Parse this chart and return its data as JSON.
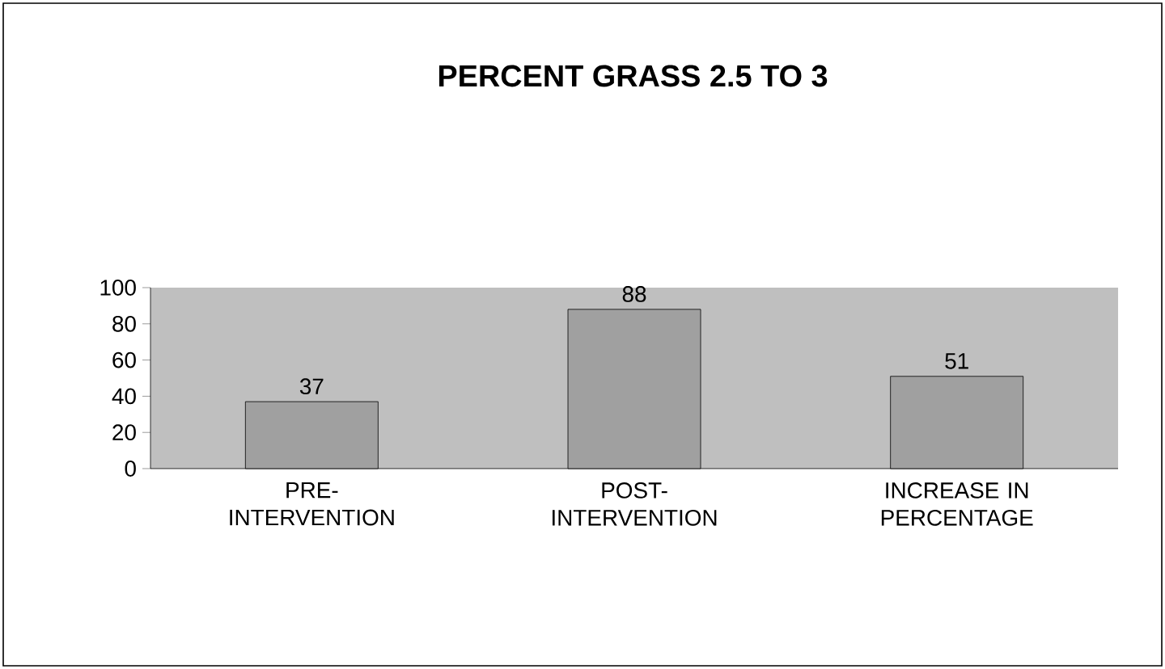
{
  "chart_data": {
    "type": "bar",
    "title": "PERCENT GRASS 2.5 TO 3",
    "categories": [
      "PRE-INTERVENTION",
      "POST-INTERVENTION",
      "INCREASE IN PERCENTAGE"
    ],
    "values": [
      37,
      88,
      51
    ],
    "color": "#a0a0a0",
    "ylim": [
      0,
      100
    ],
    "yticks": [
      0,
      20,
      40,
      60,
      80,
      100
    ],
    "data_labels": true
  }
}
